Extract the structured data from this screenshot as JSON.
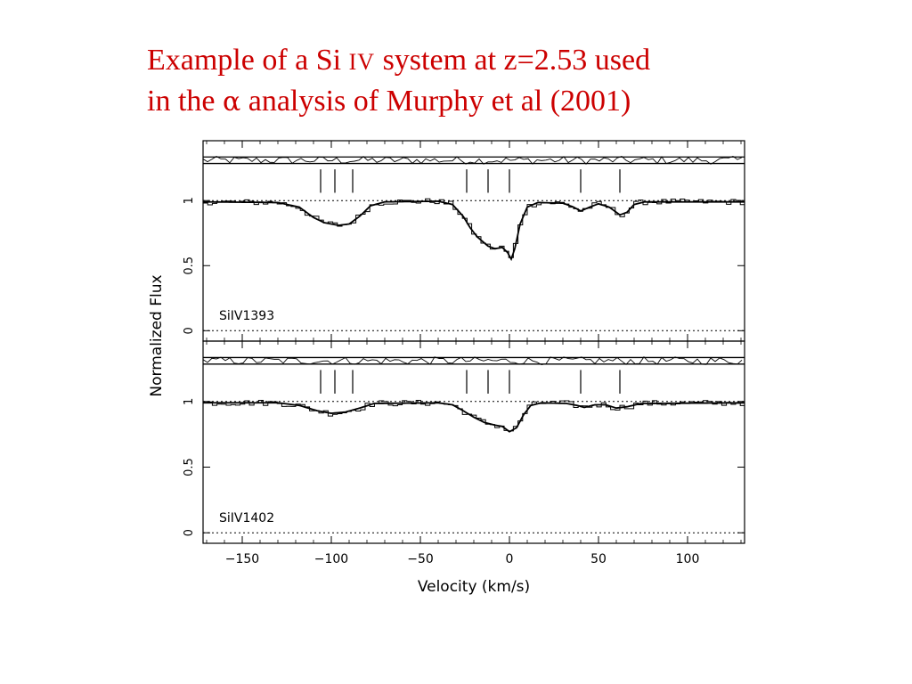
{
  "title": {
    "line1_pre": "Example of a Si ",
    "line1_ion": "IV",
    "line1_post": " system at z=2.53 used",
    "line2_pre": "in the ",
    "line2_greek": "α",
    "line2_post": " analysis of Murphy et al (2001)"
  },
  "colors": {
    "title": "#cc0000",
    "plot": "#000000"
  },
  "chart_data": {
    "type": "line",
    "xlabel": "Velocity (km/s)",
    "ylabel": "Normalized Flux",
    "xlim": [
      -172,
      132
    ],
    "x_ticks": [
      -150,
      -100,
      -50,
      0,
      50,
      100
    ],
    "x_tick_labels": [
      "−150",
      "−100",
      "−50",
      "0",
      "50",
      "100"
    ],
    "panels": [
      {
        "label": "SiIV1393",
        "ylim": [
          -0.08,
          1.46
        ],
        "y_ticks": [
          0,
          0.5,
          1
        ],
        "y_tick_labels": [
          "0",
          "0.5",
          "1"
        ],
        "component_velocities": [
          -106,
          -98,
          -88,
          -24,
          -12,
          0,
          40,
          62
        ],
        "continuum": 1.0,
        "profile": [
          [
            -172,
            0.99
          ],
          [
            -130,
            0.985
          ],
          [
            -118,
            0.95
          ],
          [
            -110,
            0.87
          ],
          [
            -104,
            0.83
          ],
          [
            -96,
            0.81
          ],
          [
            -90,
            0.82
          ],
          [
            -84,
            0.88
          ],
          [
            -78,
            0.96
          ],
          [
            -70,
            0.99
          ],
          [
            -40,
            0.995
          ],
          [
            -32,
            0.97
          ],
          [
            -26,
            0.88
          ],
          [
            -22,
            0.79
          ],
          [
            -18,
            0.72
          ],
          [
            -12,
            0.65
          ],
          [
            -8,
            0.63
          ],
          [
            -4,
            0.64
          ],
          [
            -1,
            0.6
          ],
          [
            1,
            0.55
          ],
          [
            3,
            0.63
          ],
          [
            6,
            0.82
          ],
          [
            10,
            0.95
          ],
          [
            16,
            0.985
          ],
          [
            30,
            0.98
          ],
          [
            36,
            0.95
          ],
          [
            40,
            0.92
          ],
          [
            46,
            0.955
          ],
          [
            50,
            0.975
          ],
          [
            56,
            0.95
          ],
          [
            62,
            0.89
          ],
          [
            66,
            0.91
          ],
          [
            70,
            0.97
          ],
          [
            76,
            0.99
          ],
          [
            132,
            0.99
          ]
        ],
        "residual_level": 1.31
      },
      {
        "label": "SiIV1402",
        "ylim": [
          -0.08,
          1.46
        ],
        "y_ticks": [
          0,
          0.5,
          1
        ],
        "y_tick_labels": [
          "0",
          "0.5",
          "1"
        ],
        "component_velocities": [
          -106,
          -98,
          -88,
          -24,
          -12,
          0,
          40,
          62
        ],
        "continuum": 1.0,
        "profile": [
          [
            -172,
            0.99
          ],
          [
            -130,
            0.99
          ],
          [
            -118,
            0.97
          ],
          [
            -108,
            0.93
          ],
          [
            -100,
            0.91
          ],
          [
            -92,
            0.92
          ],
          [
            -84,
            0.95
          ],
          [
            -76,
            0.985
          ],
          [
            -40,
            0.99
          ],
          [
            -32,
            0.975
          ],
          [
            -26,
            0.93
          ],
          [
            -20,
            0.88
          ],
          [
            -14,
            0.84
          ],
          [
            -8,
            0.82
          ],
          [
            -4,
            0.81
          ],
          [
            0,
            0.77
          ],
          [
            4,
            0.8
          ],
          [
            8,
            0.9
          ],
          [
            12,
            0.97
          ],
          [
            18,
            0.99
          ],
          [
            32,
            0.985
          ],
          [
            38,
            0.97
          ],
          [
            42,
            0.955
          ],
          [
            48,
            0.975
          ],
          [
            54,
            0.975
          ],
          [
            60,
            0.95
          ],
          [
            66,
            0.96
          ],
          [
            74,
            0.985
          ],
          [
            132,
            0.99
          ]
        ],
        "residual_level": 1.31
      }
    ]
  }
}
